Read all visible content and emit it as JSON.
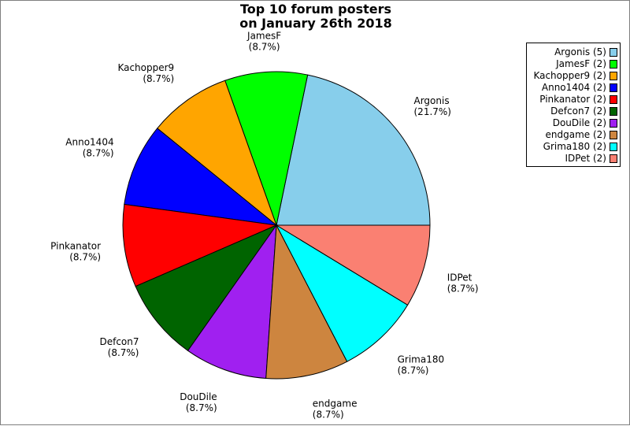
{
  "chart_data": {
    "type": "pie",
    "title_lines": [
      "Top 10 forum posters",
      "on January 26th 2018"
    ],
    "legend_position": "top-right",
    "slices": [
      {
        "name": "Argonis",
        "value": 5,
        "percent": "21.7%",
        "legend": "Argonis (5)",
        "color": "#87ceeb"
      },
      {
        "name": "JamesF",
        "value": 2,
        "percent": "8.7%",
        "legend": "JamesF (2)",
        "color": "#00ff00"
      },
      {
        "name": "Kachopper9",
        "value": 2,
        "percent": "8.7%",
        "legend": "Kachopper9 (2)",
        "color": "#ffa500"
      },
      {
        "name": "Anno1404",
        "value": 2,
        "percent": "8.7%",
        "legend": "Anno1404 (2)",
        "color": "#0000ff"
      },
      {
        "name": "Pinkanator",
        "value": 2,
        "percent": "8.7%",
        "legend": "Pinkanator (2)",
        "color": "#ff0000"
      },
      {
        "name": "Defcon7",
        "value": 2,
        "percent": "8.7%",
        "legend": "Defcon7 (2)",
        "color": "#006400"
      },
      {
        "name": "DouDile",
        "value": 2,
        "percent": "8.7%",
        "legend": "DouDile (2)",
        "color": "#a020f0"
      },
      {
        "name": "endgame",
        "value": 2,
        "percent": "8.7%",
        "legend": "endgame (2)",
        "color": "#cd853f"
      },
      {
        "name": "Grima180",
        "value": 2,
        "percent": "8.7%",
        "legend": "Grima180 (2)",
        "color": "#00ffff"
      },
      {
        "name": "IDPet",
        "value": 2,
        "percent": "8.7%",
        "legend": "IDPet (2)",
        "color": "#fa8072"
      }
    ]
  }
}
